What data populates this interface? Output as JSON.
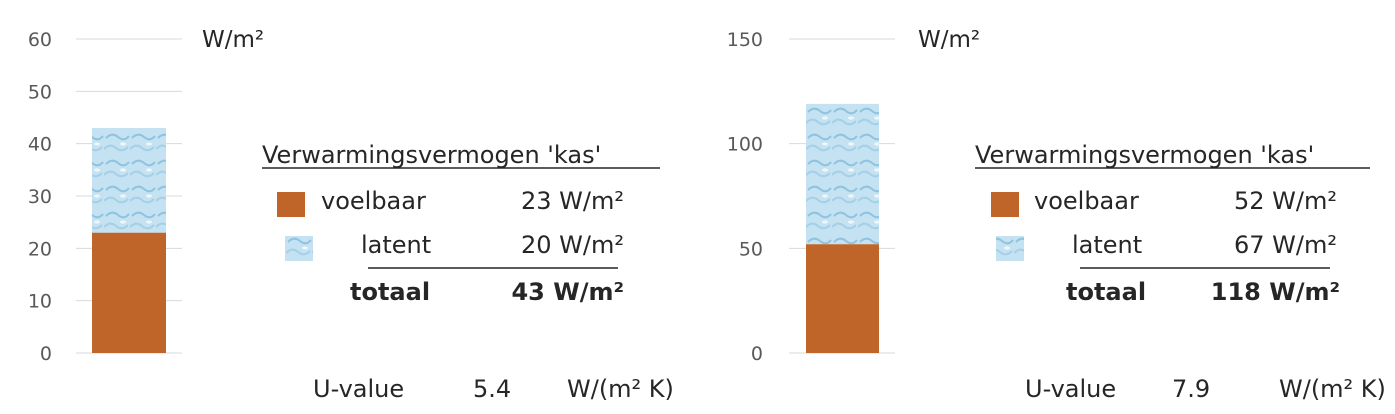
{
  "colors": {
    "sensible": "#c0652a",
    "latent": "#b9dcef",
    "latent_pattern": "#8fc3df",
    "grid": "#d9d9d9",
    "text": "#262626"
  },
  "chart_data": [
    {
      "type": "bar",
      "stacked": true,
      "unit_label": "W/m²",
      "ylim": [
        0,
        60
      ],
      "yticks": [
        "0",
        "10",
        "20",
        "30",
        "40",
        "50",
        "60"
      ],
      "grid": true,
      "series": [
        {
          "key": "voelbaar",
          "values": [
            23
          ]
        },
        {
          "key": "latent",
          "values": [
            20
          ]
        }
      ],
      "legend": {
        "title": "Verwarmingsvermogen 'kas'",
        "rows": [
          {
            "label": "voelbaar",
            "value": "23 W/m²"
          },
          {
            "label": "latent",
            "value": "20 W/m²"
          },
          {
            "label": "totaal",
            "value": "43 W/m²"
          }
        ]
      },
      "u_value": {
        "label": "U-value",
        "value": "5.4",
        "unit": "W/(m² K)"
      }
    },
    {
      "type": "bar",
      "stacked": true,
      "unit_label": "W/m²",
      "ylim": [
        0,
        150
      ],
      "yticks": [
        "0",
        "50",
        "100",
        "150"
      ],
      "grid": true,
      "series": [
        {
          "key": "voelbaar",
          "values": [
            52
          ]
        },
        {
          "key": "latent",
          "values": [
            67
          ]
        }
      ],
      "legend": {
        "title": "Verwarmingsvermogen 'kas'",
        "rows": [
          {
            "label": "voelbaar",
            "value": "52 W/m²"
          },
          {
            "label": "latent",
            "value": "67 W/m²"
          },
          {
            "label": "totaal",
            "value": "118 W/m²"
          }
        ]
      },
      "u_value": {
        "label": "U-value",
        "value": "7.9",
        "unit": "W/(m² K)"
      }
    }
  ]
}
